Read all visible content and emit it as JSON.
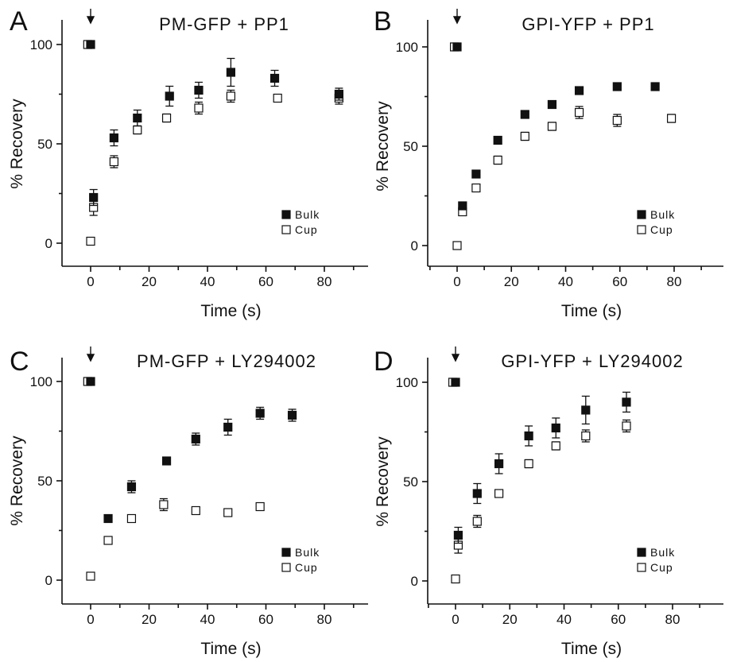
{
  "legend_labels": {
    "bulk": "Bulk",
    "cup": "Cup"
  },
  "chart_data": [
    {
      "type": "scatter",
      "panel_letter": "A",
      "title": "PM-GFP + PP1",
      "xlabel": "Time (s)",
      "ylabel": "% Recovery",
      "xlim": [
        -10,
        90
      ],
      "ylim": [
        -5,
        110
      ],
      "xticks": [
        0,
        20,
        40,
        60,
        80
      ],
      "yticks": [
        0,
        50,
        100
      ],
      "arrow_at_x": 0,
      "legend_position": "bottom-right",
      "series": [
        {
          "name": "Bulk",
          "marker": "filled-square",
          "x": [
            0,
            1,
            8,
            16,
            27,
            37,
            48,
            63,
            85
          ],
          "y": [
            100,
            23,
            53,
            63,
            74,
            77,
            86,
            83,
            75
          ],
          "err": [
            0,
            4,
            4,
            4,
            5,
            4,
            7,
            4,
            3
          ]
        },
        {
          "name": "Cup",
          "marker": "open-square",
          "x": [
            -1,
            0,
            1,
            8,
            16,
            26,
            37,
            48,
            64,
            85
          ],
          "y": [
            100,
            1,
            18,
            41,
            57,
            63,
            68,
            74,
            73,
            73
          ],
          "err": [
            0,
            0,
            4,
            3,
            2,
            2,
            3,
            3,
            1,
            3
          ]
        }
      ]
    },
    {
      "type": "scatter",
      "panel_letter": "B",
      "title": "GPI-YFP + PP1",
      "xlabel": "Time (s)",
      "ylabel": "% Recovery",
      "xlim": [
        -10,
        90
      ],
      "ylim": [
        -5,
        110
      ],
      "xticks": [
        0,
        20,
        40,
        60,
        80
      ],
      "yticks": [
        0,
        50,
        100
      ],
      "arrow_at_x": 0,
      "legend_position": "bottom-right",
      "series": [
        {
          "name": "Bulk",
          "marker": "filled-square",
          "x": [
            0,
            2,
            7,
            15,
            25,
            35,
            45,
            59,
            73
          ],
          "y": [
            100,
            20,
            36,
            53,
            66,
            71,
            78,
            80,
            80
          ],
          "err": [
            0,
            0,
            0,
            0,
            0,
            0,
            0,
            0,
            0
          ]
        },
        {
          "name": "Cup",
          "marker": "open-square",
          "x": [
            -1,
            0,
            2,
            7,
            15,
            25,
            35,
            45,
            59,
            79
          ],
          "y": [
            100,
            0,
            17,
            29,
            43,
            55,
            60,
            67,
            63,
            64
          ],
          "err": [
            0,
            0,
            1,
            1,
            2,
            2,
            2,
            3,
            3,
            2
          ]
        }
      ]
    },
    {
      "type": "scatter",
      "panel_letter": "C",
      "title": "PM-GFP + LY294002",
      "xlabel": "Time (s)",
      "ylabel": "% Recovery",
      "xlim": [
        -10,
        90
      ],
      "ylim": [
        -5,
        110
      ],
      "xticks": [
        0,
        20,
        40,
        60,
        80
      ],
      "yticks": [
        0,
        50,
        100
      ],
      "arrow_at_x": 0,
      "legend_position": "bottom-right",
      "series": [
        {
          "name": "Bulk",
          "marker": "filled-square",
          "x": [
            0,
            6,
            14,
            26,
            36,
            47,
            58,
            69
          ],
          "y": [
            100,
            31,
            47,
            60,
            71,
            77,
            84,
            83
          ],
          "err": [
            0,
            0,
            3,
            0,
            3,
            4,
            3,
            3
          ]
        },
        {
          "name": "Cup",
          "marker": "open-square",
          "x": [
            -1,
            0,
            6,
            14,
            25,
            36,
            47,
            58
          ],
          "y": [
            100,
            2,
            20,
            31,
            38,
            35,
            34,
            37
          ],
          "err": [
            0,
            0,
            0,
            0,
            3,
            0,
            0,
            0
          ]
        }
      ]
    },
    {
      "type": "scatter",
      "panel_letter": "D",
      "title": "GPI-YFP + LY294002",
      "xlabel": "Time (s)",
      "ylabel": "% Recovery",
      "xlim": [
        -10,
        90
      ],
      "ylim": [
        -5,
        110
      ],
      "xticks": [
        0,
        20,
        40,
        60,
        80
      ],
      "yticks": [
        0,
        50,
        100
      ],
      "arrow_at_x": 0,
      "legend_position": "bottom-right",
      "series": [
        {
          "name": "Bulk",
          "marker": "filled-square",
          "x": [
            0,
            1,
            8,
            16,
            27,
            37,
            48,
            63
          ],
          "y": [
            100,
            23,
            44,
            59,
            73,
            77,
            86,
            90
          ],
          "err": [
            0,
            4,
            5,
            5,
            5,
            5,
            7,
            5
          ]
        },
        {
          "name": "Cup",
          "marker": "open-square",
          "x": [
            -1,
            0,
            1,
            8,
            16,
            27,
            37,
            48,
            63
          ],
          "y": [
            100,
            1,
            18,
            30,
            44,
            59,
            68,
            73,
            78
          ],
          "err": [
            0,
            0,
            4,
            3,
            0,
            2,
            2,
            3,
            3
          ]
        }
      ]
    }
  ]
}
